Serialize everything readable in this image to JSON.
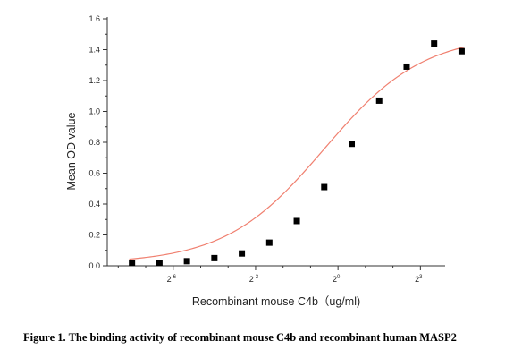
{
  "chart_data": {
    "type": "scatter",
    "title": "",
    "xlabel": "Recombinant mouse C4b（ug/ml)",
    "ylabel": "Mean OD value",
    "x_scale": "log2",
    "ylim": [
      0,
      1.6
    ],
    "xlim_log2": [
      -8.4,
      3.9
    ],
    "grid": false,
    "legend": "none",
    "x_tick_labels": [
      {
        "base": "2",
        "exp": "-6",
        "log2": -6
      },
      {
        "base": "2",
        "exp": "-3",
        "log2": -3
      },
      {
        "base": "2",
        "exp": "0",
        "log2": 0
      },
      {
        "base": "2",
        "exp": "3",
        "log2": 3
      }
    ],
    "y_ticks": [
      "0.0",
      "0.2",
      "0.4",
      "0.6",
      "0.8",
      "1.0",
      "1.2",
      "1.4",
      "1.6"
    ],
    "series": [
      {
        "log2_x": [
          -7.5,
          -6.5,
          -5.5,
          -4.5,
          -3.5,
          -2.5,
          -1.5,
          -0.5,
          0.5,
          1.5,
          2.5,
          3.5
        ],
        "y": [
          0.02,
          0.02,
          0.03,
          0.05,
          0.08,
          0.15,
          0.29,
          0.51,
          0.79,
          1.07,
          1.29,
          1.44
        ],
        "marker": "square",
        "color": "#000000"
      }
    ],
    "extra_point": {
      "log2_x": 4.5,
      "y": 1.39
    },
    "fit_curve": {
      "color": "#f08070",
      "bottom": 0.015,
      "top": 1.5,
      "log2_ec50": -0.5,
      "hill": 0.8
    }
  },
  "caption": "Figure 1. The binding activity of recombinant mouse C4b and recombinant human MASP2"
}
